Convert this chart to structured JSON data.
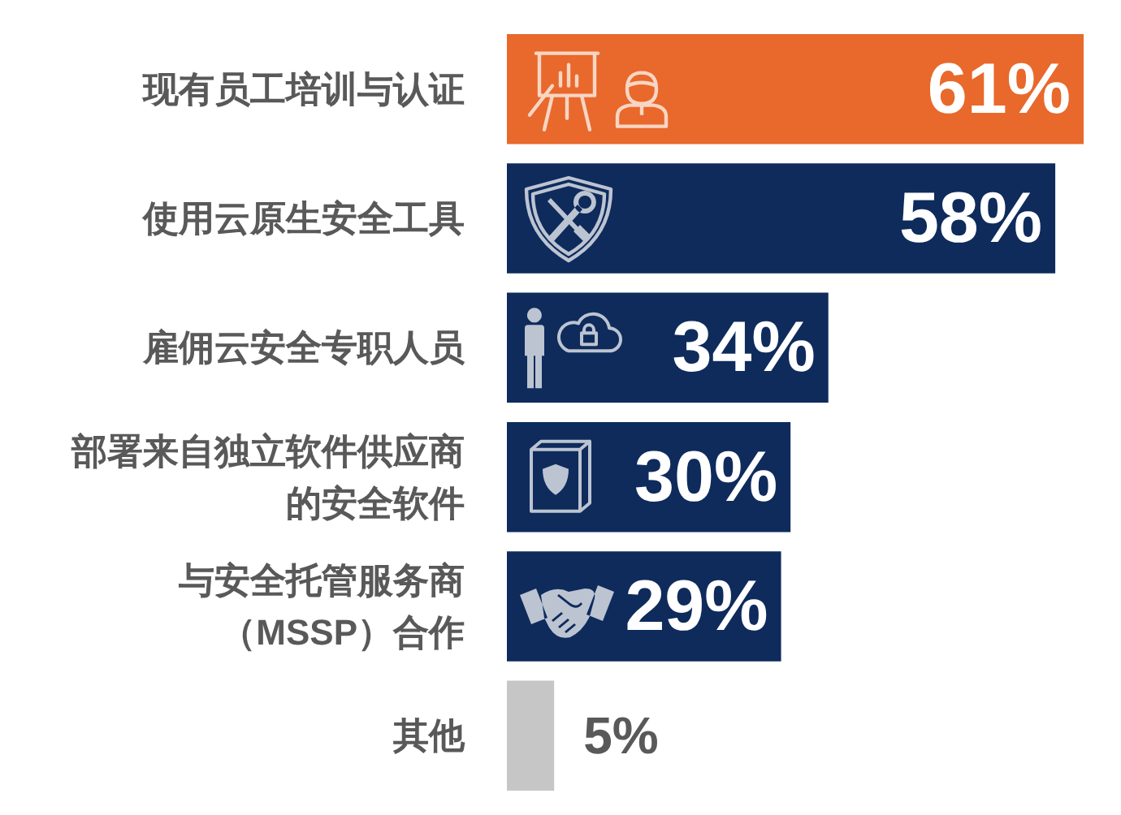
{
  "chart_data": {
    "type": "bar",
    "orientation": "horizontal",
    "categories": [
      "现有员工培训与认证",
      "使用云原生安全工具",
      "雇佣云安全专职人员",
      "部署来自独立软件供应商的安全软件",
      "与安全托管服务商（MSSP）合作",
      "其他"
    ],
    "values": [
      61,
      58,
      34,
      30,
      29,
      5
    ],
    "colors": [
      "#e8692b",
      "#0e2b5c",
      "#0e2b5c",
      "#0e2b5c",
      "#0e2b5c",
      "#c6c6c6"
    ],
    "value_labels": [
      "61%",
      "58%",
      "34%",
      "30%",
      "29%",
      "5%"
    ]
  }
}
